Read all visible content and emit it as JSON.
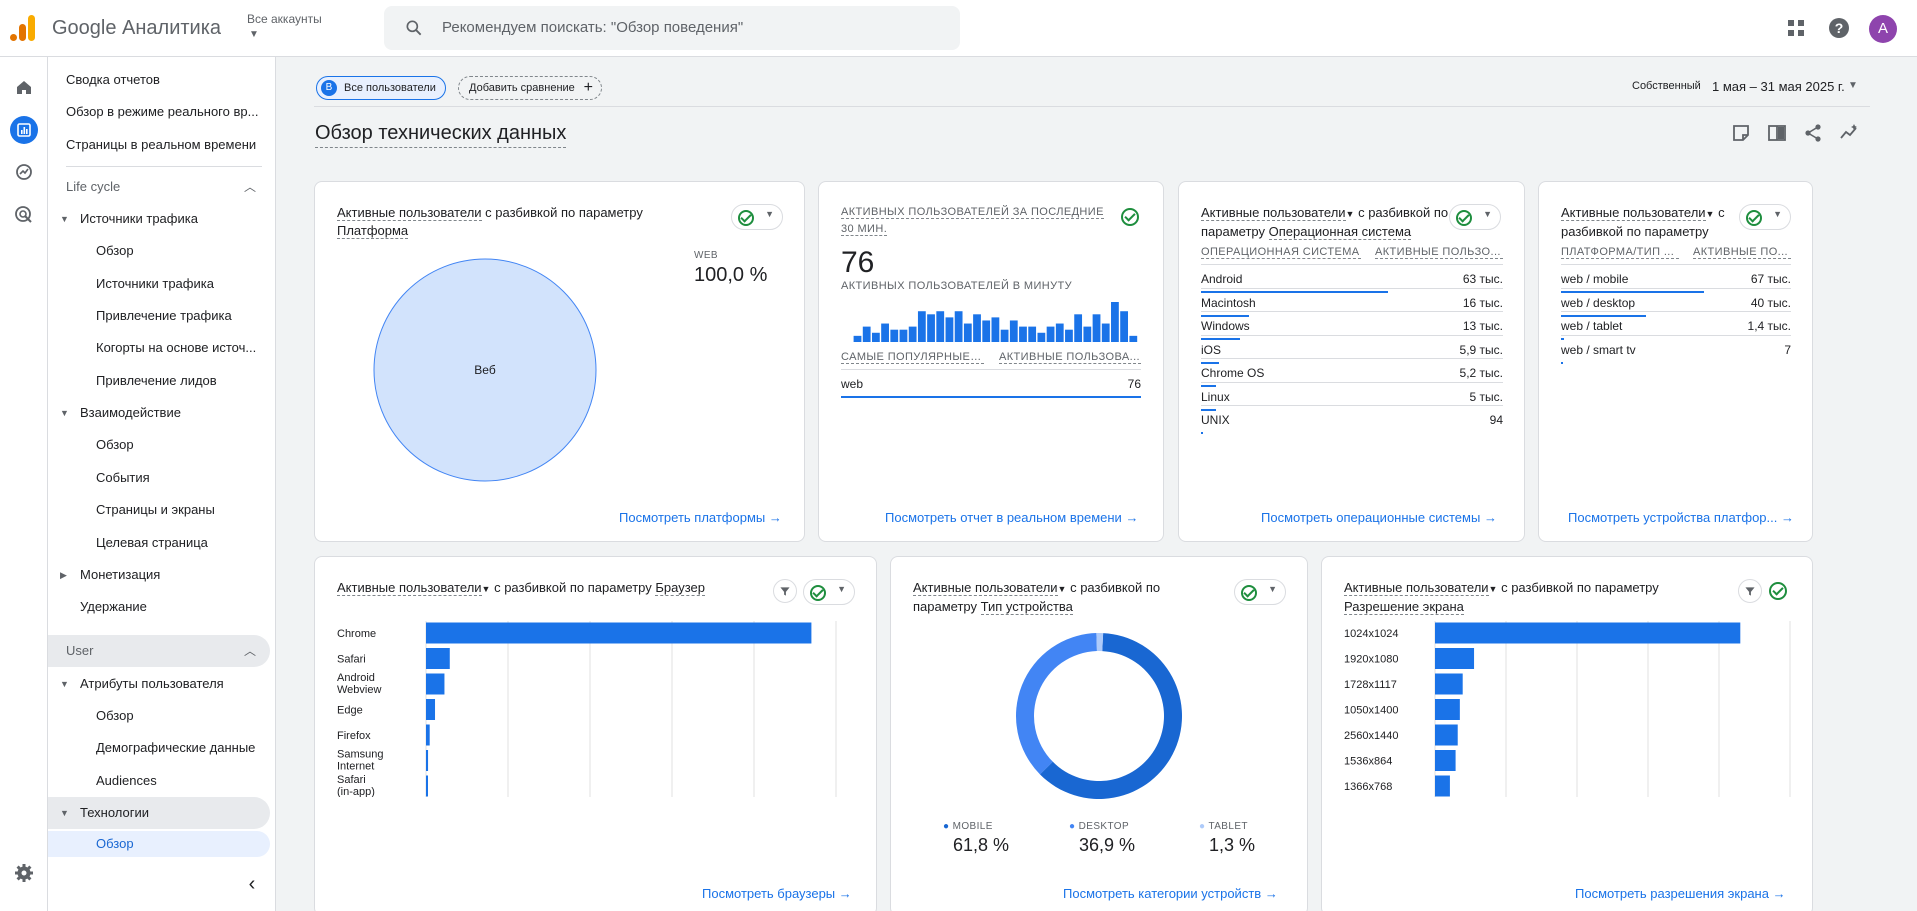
{
  "header": {
    "logo_text": "Google Аналитика",
    "account_selector": "Все аккаунты",
    "search_placeholder": "Рекомендуем поискать: \"Обзор поведения\"",
    "avatar_letter": "A"
  },
  "nav": {
    "items": [
      {
        "label": "Сводка отчетов"
      },
      {
        "label": "Обзор в режиме реального вр..."
      },
      {
        "label": "Страницы в реальном времени"
      },
      {
        "label": "Life cycle"
      },
      {
        "label": "Источники трафика"
      },
      {
        "label": "Обзор"
      },
      {
        "label": "Источники трафика"
      },
      {
        "label": "Привлечение трафика"
      },
      {
        "label": "Когорты на основе источ..."
      },
      {
        "label": "Привлечение лидов"
      },
      {
        "label": "Взаимодействие"
      },
      {
        "label": "Обзор"
      },
      {
        "label": "События"
      },
      {
        "label": "Страницы и экраны"
      },
      {
        "label": "Целевая страница"
      },
      {
        "label": "Монетизация"
      },
      {
        "label": "Удержание"
      },
      {
        "label": "User"
      },
      {
        "label": "Атрибуты пользователя"
      },
      {
        "label": "Обзор"
      },
      {
        "label": "Демографические данные"
      },
      {
        "label": "Audiences"
      },
      {
        "label": "Технологии"
      },
      {
        "label": "Обзор"
      }
    ]
  },
  "toolbar": {
    "segment_badge": "B",
    "segment_label": "Все пользователи",
    "add_comparison": "Добавить сравнение",
    "date_range_label": "Собственный",
    "date_range_value": "1 мая – 31 мая 2025 г."
  },
  "page_title": "Обзор технических данных",
  "cards": {
    "platform": {
      "title_metric": "Активные пользователи",
      "title_mid": " с разбивкой по параметру ",
      "title_dim": "Платформа",
      "legend_label": "WEB",
      "legend_value": "100,0 %",
      "slice_label": "Веб",
      "link": "Посмотреть платформы"
    },
    "realtime": {
      "title": "АКТИВНЫХ ПОЛЬЗОВАТЕЛЕЙ ЗА ПОСЛЕДНИЕ 30 МИН.",
      "value": "76",
      "per_minute_label": "АКТИВНЫХ ПОЛЬЗОВАТЕЛЕЙ В МИНУТУ",
      "col1": "САМЫЕ ПОПУЛЯРНЫЕ ...",
      "col2": "АКТИВНЫЕ ПОЛЬЗОВА...",
      "row_name": "web",
      "row_value": "76",
      "link": "Посмотреть отчет в реальном времени"
    },
    "os": {
      "title_metric": "Активные пользователи",
      "title_mid": " с разбивкой по параметру ",
      "title_dim": "Операционная система",
      "col1": "ОПЕРАЦИОННАЯ СИСТЕМА",
      "col2": "АКТИВНЫЕ ПОЛЬЗО...",
      "rows": [
        {
          "name": "Android",
          "value": "63 тыс."
        },
        {
          "name": "Macintosh",
          "value": "16 тыс."
        },
        {
          "name": "Windows",
          "value": "13 тыс."
        },
        {
          "name": "iOS",
          "value": "5,9 тыс."
        },
        {
          "name": "Chrome OS",
          "value": "5,2 тыс."
        },
        {
          "name": "Linux",
          "value": "5 тыс."
        },
        {
          "name": "UNIX",
          "value": "94"
        }
      ],
      "link": "Посмотреть операционные системы"
    },
    "platform_device": {
      "title_metric": "Активные пользователи",
      "title_mid": " с разбивкой по параметру ",
      "title_dim": "",
      "col1": "ПЛАТФОРМА/ТИП ...",
      "col2": "АКТИВНЫЕ ПО...",
      "rows": [
        {
          "name": "web / mobile",
          "value": "67 тыс."
        },
        {
          "name": "web / desktop",
          "value": "40 тыс."
        },
        {
          "name": "web / tablet",
          "value": "1,4 тыс."
        },
        {
          "name": "web / smart tv",
          "value": "7"
        }
      ],
      "link": "Посмотреть устройства платфор..."
    },
    "browser": {
      "title_metric": "Активные пользователи",
      "title_mid": " с разбивкой по параметру ",
      "title_dim": "Браузер",
      "link": "Посмотреть браузеры"
    },
    "device": {
      "title_metric": "Активные пользователи",
      "title_mid": " с разбивкой по параметру ",
      "title_dim": "Тип устройства",
      "legend": [
        {
          "label": "MOBILE",
          "value": "61,8 %"
        },
        {
          "label": "DESKTOP",
          "value": "36,9 %"
        },
        {
          "label": "TABLET",
          "value": "1,3 %"
        }
      ],
      "link": "Посмотреть категории устройств"
    },
    "resolution": {
      "title_metric": "Активные пользователи",
      "title_mid": " с разбивкой по параметру ",
      "title_dim": "Разрешение экрана",
      "link": "Посмотреть разрешения экрана"
    }
  },
  "chart_data": [
    {
      "type": "pie",
      "categories": [
        "Веб"
      ],
      "values": [
        100.0
      ]
    },
    {
      "type": "bar",
      "values": [
        2,
        5,
        3,
        6,
        4,
        4,
        5,
        10,
        9,
        10,
        8,
        10,
        6,
        9,
        7,
        8,
        4,
        7,
        5,
        5,
        3,
        5,
        6,
        4,
        9,
        5,
        9,
        6,
        13,
        10,
        2
      ]
    },
    {
      "type": "bar",
      "orientation": "horizontal",
      "categories": [
        "Chrome",
        "Safari",
        "Android Webview",
        "Edge",
        "Firefox",
        "Samsung Internet",
        "Safari (in-app)"
      ],
      "values": [
        94000,
        5800,
        4500,
        2200,
        900,
        500,
        300
      ],
      "xlim": [
        0,
        100000
      ],
      "x_ticks": [
        "0",
        "20 тыс.",
        "40 тыс.",
        "60 тыс.",
        "80 тыс.",
        "100 тыс."
      ]
    },
    {
      "type": "pie",
      "categories": [
        "MOBILE",
        "DESKTOP",
        "TABLET"
      ],
      "values": [
        61.8,
        36.9,
        1.3
      ]
    },
    {
      "type": "bar",
      "orientation": "horizontal",
      "categories": [
        "1024x1024",
        "1920x1080",
        "1728x1117",
        "1050x1400",
        "2560x1440",
        "1536x864",
        "1366x768"
      ],
      "values": [
        43000,
        5500,
        3900,
        3500,
        3200,
        2900,
        2100
      ],
      "xlim": [
        0,
        50000
      ],
      "x_ticks": [
        "0",
        "10 тыс.",
        "20 тыс.",
        "30 тыс.",
        "40 тыс.",
        "50 тыс."
      ]
    }
  ],
  "colors": {
    "accent": "#1a73e8",
    "bar": "#1a73e8",
    "pie_web": "#d2e3fc",
    "mobile": "#1967d2",
    "desktop": "#4285f4",
    "tablet": "#aecbfa",
    "check": "#1e8e3e"
  }
}
